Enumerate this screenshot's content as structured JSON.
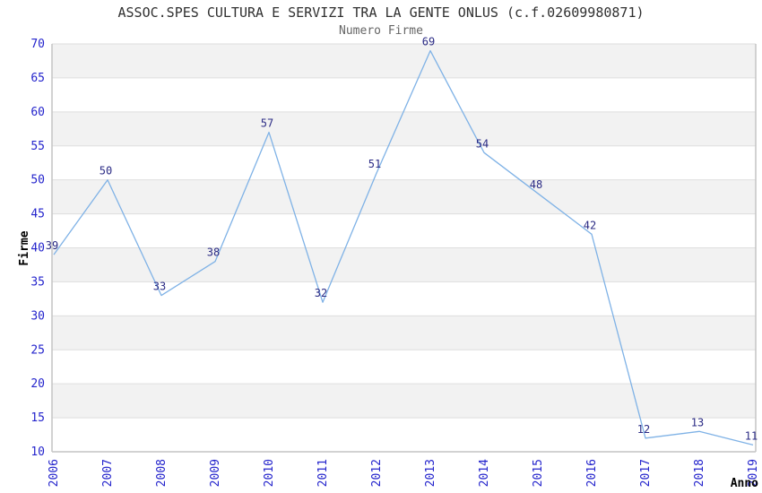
{
  "chart_data": {
    "type": "line",
    "title": "ASSOC.SPES CULTURA E SERVIZI TRA LA GENTE ONLUS (c.f.02609980871)",
    "subtitle": "Numero Firme",
    "xlabel": "Anno",
    "ylabel": "Firme",
    "categories": [
      "2006",
      "2007",
      "2008",
      "2009",
      "2010",
      "2011",
      "2012",
      "2013",
      "2014",
      "2015",
      "2016",
      "2017",
      "2018",
      "2019"
    ],
    "values": [
      39,
      50,
      33,
      38,
      57,
      32,
      51,
      69,
      54,
      48,
      42,
      12,
      13,
      11
    ],
    "ylim": [
      10,
      70
    ],
    "ytick_step": 5,
    "grid": "horizontal-bands-alternating",
    "legend": "none",
    "colors": {
      "line": "#7fb2e6",
      "point_label": "#2b2b85",
      "tick_label": "#2424cc",
      "axis_line": "#c4c4c4",
      "band_fill": "#f2f2f2",
      "grid_line": "#dedede",
      "title": "#303030",
      "subtitle": "#666666",
      "axis_title": "#000000"
    }
  }
}
